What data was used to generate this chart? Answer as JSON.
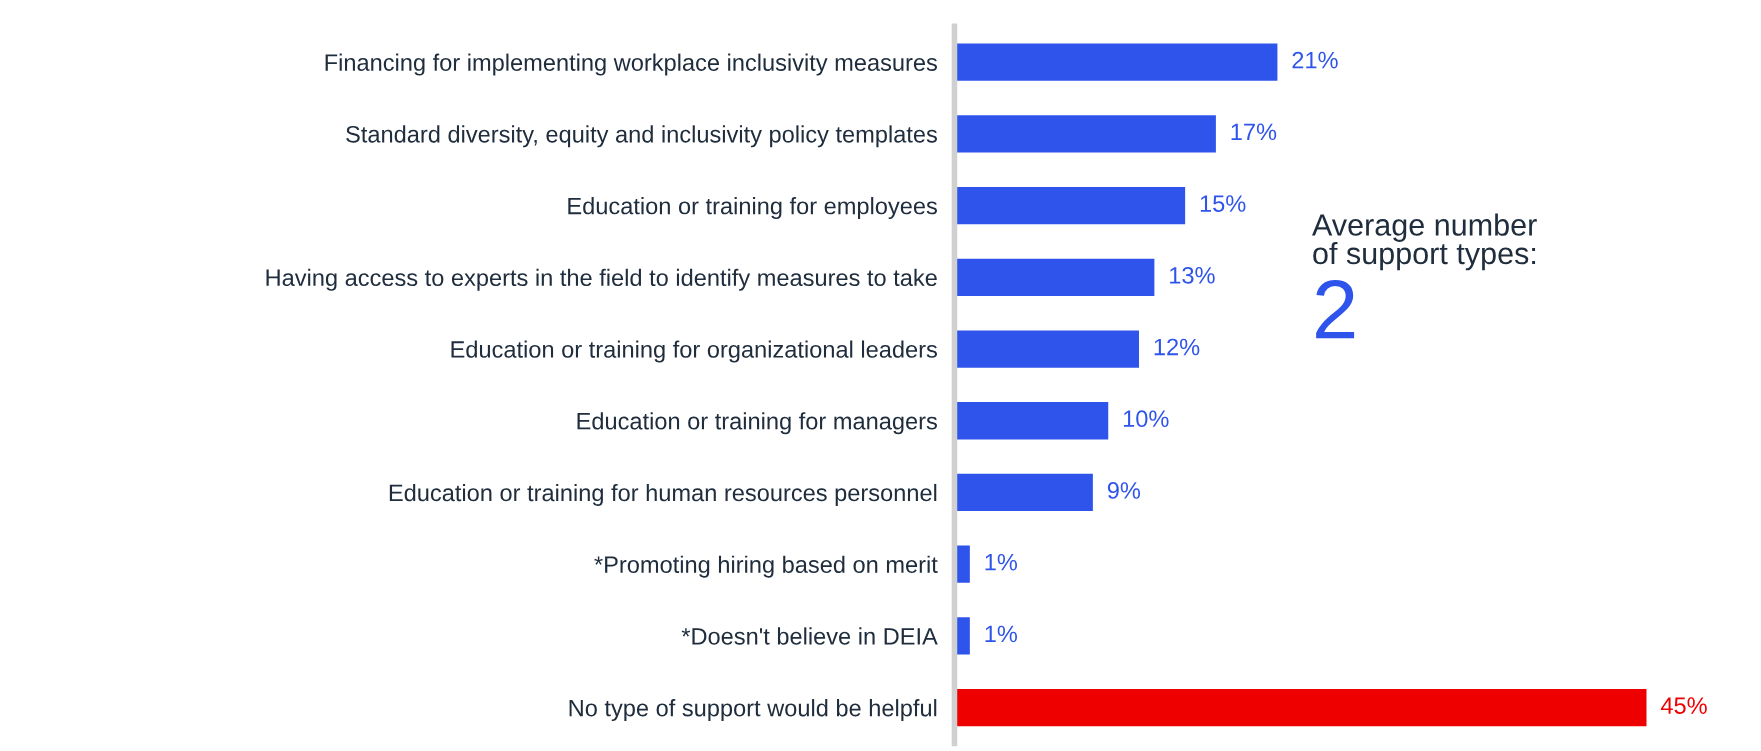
{
  "chart_data": {
    "type": "bar",
    "orientation": "horizontal",
    "categories": [
      "Financing for implementing workplace inclusivity measures",
      "Standard diversity, equity and inclusivity policy templates",
      "Education or training for employees",
      "Having access to experts in the field to identify measures to take",
      "Education or training for organizational leaders",
      "Education or training for managers",
      "Education or training for human resources personnel",
      "*Promoting hiring based on merit",
      "*Doesn't believe in DEIA",
      "No type of support would be helpful"
    ],
    "values": [
      21,
      17,
      15,
      13,
      12,
      10,
      9,
      1,
      1,
      45
    ],
    "value_labels": [
      "21%",
      "17%",
      "15%",
      "13%",
      "12%",
      "10%",
      "9%",
      "1%",
      "1%",
      "45%"
    ],
    "colors": [
      "#2f54eb",
      "#2f54eb",
      "#2f54eb",
      "#2f54eb",
      "#2f54eb",
      "#2f54eb",
      "#2f54eb",
      "#2f54eb",
      "#2f54eb",
      "#ee0000"
    ],
    "annotations": [
      "Average number\nof support types:",
      "2"
    ],
    "grid": false,
    "legend": false
  }
}
